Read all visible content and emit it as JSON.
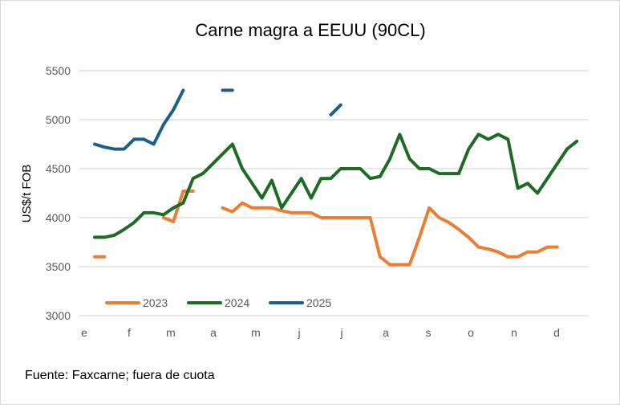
{
  "chart_data": {
    "type": "line",
    "title": "Carne magra a EEUU (90CL)",
    "ylabel": "US$/t FOB",
    "xlabel": "",
    "ylim": [
      3000,
      5500
    ],
    "yticks": [
      3000,
      3500,
      4000,
      4500,
      5000,
      5500
    ],
    "xtick_labels": [
      "e",
      "f",
      "m",
      "a",
      "m",
      "j",
      "j",
      "a",
      "s",
      "o",
      "n",
      "d"
    ],
    "grid": true,
    "legend": "bottom-left",
    "x_unit": "week",
    "series": [
      {
        "name": "2023",
        "color": "#ED7D31",
        "values": [
          3600,
          3600,
          null,
          null,
          null,
          null,
          null,
          4000,
          3960,
          4270,
          4270,
          null,
          null,
          4100,
          4060,
          4150,
          4100,
          4100,
          4100,
          4070,
          4050,
          4050,
          4050,
          4000,
          4000,
          4000,
          4000,
          4000,
          4000,
          3600,
          3520,
          3520,
          3520,
          3800,
          4100,
          4000,
          3950,
          3880,
          3800,
          3700,
          3680,
          3650,
          3600,
          3600,
          3650,
          3650,
          3700,
          3700
        ]
      },
      {
        "name": "2024",
        "color": "#1E6B24",
        "values": [
          3800,
          3800,
          3820,
          3880,
          3950,
          4050,
          4050,
          4030,
          4100,
          4150,
          4400,
          4450,
          4550,
          4650,
          4750,
          4500,
          4350,
          4200,
          4380,
          4100,
          4250,
          4400,
          4200,
          4400,
          4400,
          4500,
          4500,
          4500,
          4400,
          4420,
          4600,
          4850,
          4600,
          4500,
          4500,
          4450,
          4450,
          4450,
          4700,
          4850,
          4800,
          4850,
          4800,
          4300,
          4350,
          4250,
          4400,
          4550,
          4700,
          4780
        ]
      },
      {
        "name": "2025",
        "color": "#1F5F86",
        "values": [
          4750,
          4720,
          4700,
          4700,
          4800,
          4800,
          4750,
          4950,
          5100,
          5300,
          null,
          null,
          null,
          5300,
          5300,
          null,
          null,
          null,
          null,
          null,
          null,
          null,
          null,
          null,
          5050,
          5150
        ]
      }
    ]
  },
  "footer": {
    "source": "Fuente: Faxcarne; fuera de cuota"
  }
}
